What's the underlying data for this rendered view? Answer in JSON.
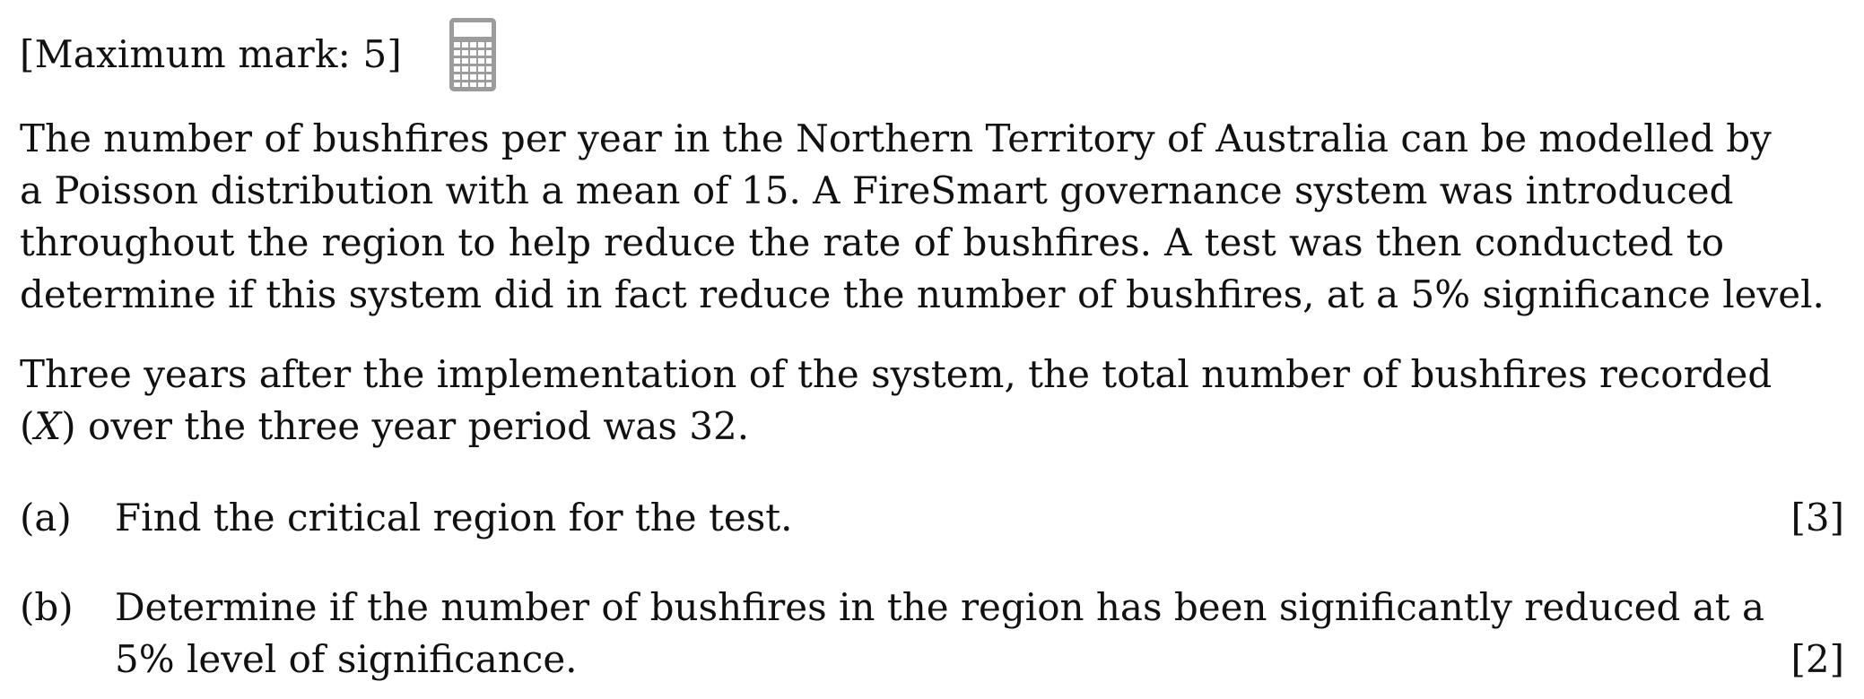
{
  "header": {
    "max_mark": "[Maximum mark: 5]",
    "calculator_icon": "calculator-icon"
  },
  "intro": {
    "lines": [
      "The number of bushfires per year in the Northern Territory of Australia can be modelled by",
      "a Poisson distribution with a mean of 15.  A FireSmart governance system was introduced",
      "throughout the region to help reduce the rate of bushfires.  A test was then conducted to",
      "determine if this system did in fact reduce the number of bushfires, at a 5% significance level."
    ]
  },
  "context": {
    "lines": [
      "Three years after the implementation of the system, the total number of bushfires recorded",
      "(X) over the three year period was 32."
    ]
  },
  "parts": [
    {
      "label": "(a)",
      "lines": [
        "Find the critical region for the test."
      ],
      "marks": "[3]"
    },
    {
      "label": "(b)",
      "lines": [
        "Determine if the number of bushfires in the region has been significantly reduced at a",
        "5% level of significance."
      ],
      "marks": "[2]"
    }
  ]
}
